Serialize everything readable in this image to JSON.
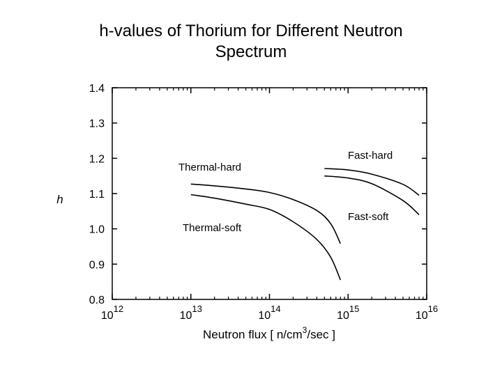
{
  "chart_data": {
    "type": "line",
    "title_lines": [
      "h-values of Thorium for Different Neutron",
      "Spectrum"
    ],
    "ylabel": "h",
    "xlabel": {
      "prefix": "Neutron flux [ n/cm",
      "sup": "3",
      "suffix": "/sec ]"
    },
    "x_scale": "log",
    "xlim": [
      1000000000000.0,
      1e+16
    ],
    "ylim": [
      0.8,
      1.4
    ],
    "grid": false,
    "x_ticks": [
      {
        "base": "10",
        "exp": "12",
        "value": 1000000000000.0
      },
      {
        "base": "10",
        "exp": "13",
        "value": 10000000000000.0
      },
      {
        "base": "10",
        "exp": "14",
        "value": 100000000000000.0
      },
      {
        "base": "10",
        "exp": "15",
        "value": 1000000000000000.0
      },
      {
        "base": "10",
        "exp": "16",
        "value": 1e+16
      }
    ],
    "y_ticks": [
      "1.4",
      "1.3",
      "1.2",
      "1.1",
      "1.0",
      "0.9",
      "0.8"
    ],
    "series": [
      {
        "name": "Thermal-hard",
        "points": [
          [
            10000000000000.0,
            1.127
          ],
          [
            20000000000000.0,
            1.122
          ],
          [
            50000000000000.0,
            1.113
          ],
          [
            100000000000000.0,
            1.103
          ],
          [
            200000000000000.0,
            1.083
          ],
          [
            400000000000000.0,
            1.052
          ],
          [
            600000000000000.0,
            1.015
          ],
          [
            800000000000000.0,
            0.958
          ]
        ]
      },
      {
        "name": "Thermal-soft",
        "points": [
          [
            10000000000000.0,
            1.097
          ],
          [
            20000000000000.0,
            1.087
          ],
          [
            50000000000000.0,
            1.07
          ],
          [
            100000000000000.0,
            1.055
          ],
          [
            200000000000000.0,
            1.02
          ],
          [
            400000000000000.0,
            0.97
          ],
          [
            600000000000000.0,
            0.92
          ],
          [
            800000000000000.0,
            0.855
          ]
        ]
      },
      {
        "name": "Fast-hard",
        "points": [
          [
            500000000000000.0,
            1.171
          ],
          [
            1000000000000000.0,
            1.167
          ],
          [
            2000000000000000.0,
            1.155
          ],
          [
            5000000000000000.0,
            1.126
          ],
          [
            8000000000000000.0,
            1.095
          ]
        ]
      },
      {
        "name": "Fast-soft",
        "points": [
          [
            500000000000000.0,
            1.15
          ],
          [
            1000000000000000.0,
            1.144
          ],
          [
            2000000000000000.0,
            1.128
          ],
          [
            5000000000000000.0,
            1.08
          ],
          [
            8000000000000000.0,
            1.04
          ]
        ]
      }
    ]
  }
}
